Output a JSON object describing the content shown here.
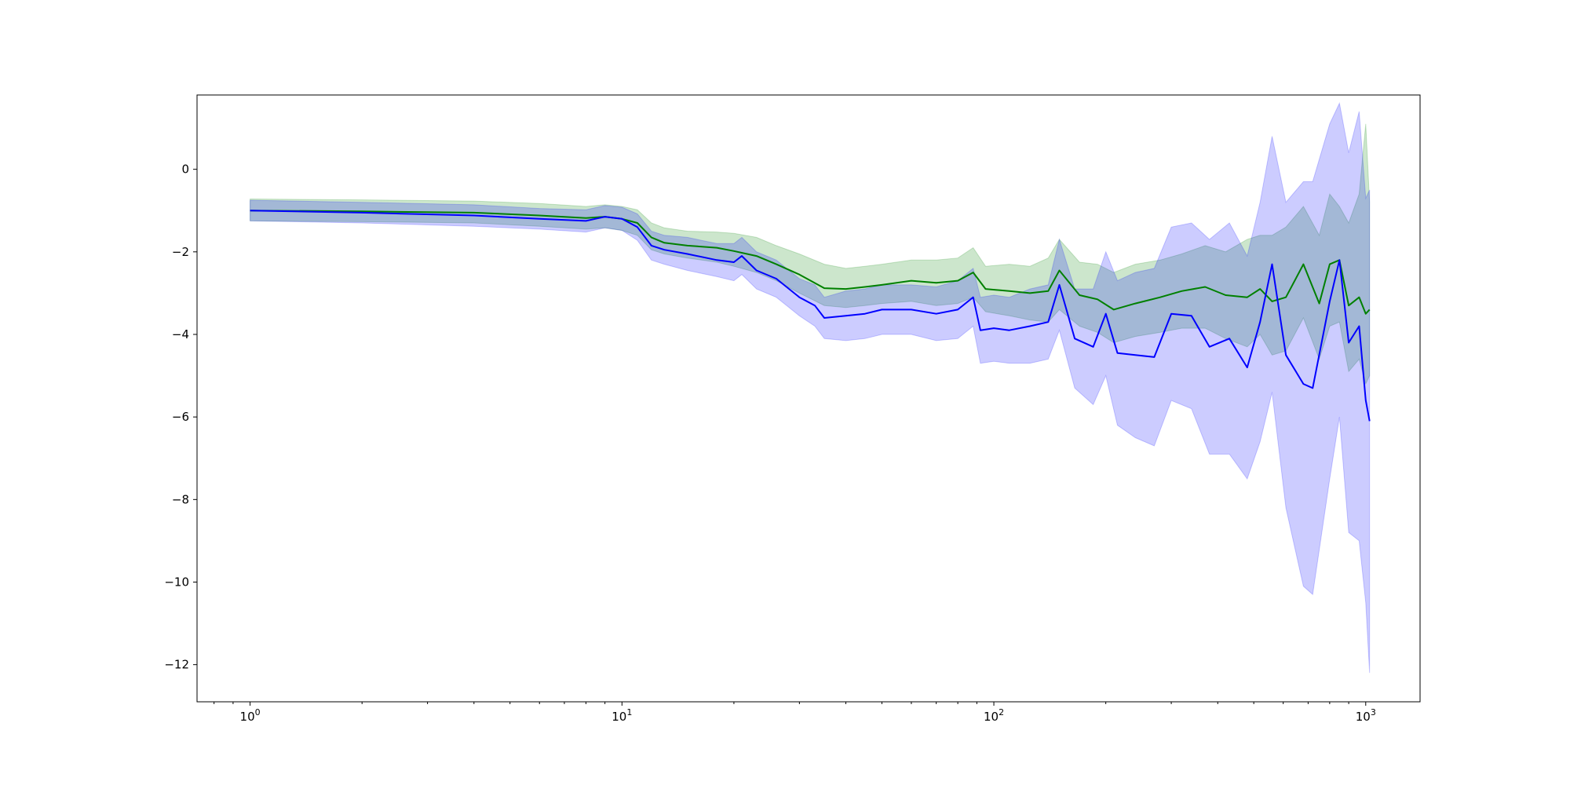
{
  "chart_data": {
    "type": "line",
    "title": "",
    "xlabel": "",
    "ylabel": "",
    "x_scale": "log",
    "xlim": [
      0.72,
      1400
    ],
    "ylim": [
      -12.9,
      1.8
    ],
    "grid": false,
    "legend": "none",
    "x_ticks": [
      {
        "value": 1,
        "base": "10",
        "exp": "0"
      },
      {
        "value": 10,
        "base": "10",
        "exp": "1"
      },
      {
        "value": 100,
        "base": "10",
        "exp": "2"
      },
      {
        "value": 1000,
        "base": "10",
        "exp": "3"
      }
    ],
    "y_ticks": [
      {
        "value": 0,
        "label": "0"
      },
      {
        "value": -2,
        "label": "−2"
      },
      {
        "value": -4,
        "label": "−4"
      },
      {
        "value": -6,
        "label": "−6"
      },
      {
        "value": -8,
        "label": "−8"
      },
      {
        "value": -10,
        "label": "−10"
      },
      {
        "value": -12,
        "label": "−12"
      }
    ],
    "series": [
      {
        "color": "#008000",
        "band_color": "#008000",
        "band_opacity": 0.2,
        "x": [
          1,
          2,
          4,
          6,
          8,
          9,
          10,
          11,
          12,
          13,
          15,
          18,
          20,
          23,
          26,
          30,
          35,
          40,
          45,
          50,
          60,
          70,
          80,
          88,
          95,
          110,
          125,
          140,
          150,
          170,
          190,
          210,
          240,
          280,
          320,
          370,
          420,
          480,
          520,
          560,
          610,
          680,
          750,
          800,
          850,
          900,
          960,
          1000,
          1024
        ],
        "y": [
          -1.0,
          -1.02,
          -1.05,
          -1.12,
          -1.18,
          -1.15,
          -1.2,
          -1.3,
          -1.65,
          -1.78,
          -1.85,
          -1.9,
          -1.98,
          -2.1,
          -2.3,
          -2.55,
          -2.88,
          -2.9,
          -2.85,
          -2.8,
          -2.7,
          -2.75,
          -2.7,
          -2.5,
          -2.9,
          -2.95,
          -3.0,
          -2.95,
          -2.45,
          -3.05,
          -3.15,
          -3.4,
          -3.25,
          -3.1,
          -2.95,
          -2.85,
          -3.05,
          -3.1,
          -2.9,
          -3.2,
          -3.1,
          -2.3,
          -3.25,
          -2.3,
          -2.2,
          -3.3,
          -3.1,
          -3.5,
          -3.4
        ],
        "lower": [
          -1.25,
          -1.27,
          -1.3,
          -1.38,
          -1.45,
          -1.42,
          -1.48,
          -1.6,
          -1.95,
          -2.05,
          -2.15,
          -2.25,
          -2.35,
          -2.5,
          -2.7,
          -3.0,
          -3.3,
          -3.35,
          -3.3,
          -3.25,
          -3.2,
          -3.3,
          -3.25,
          -3.1,
          -3.45,
          -3.55,
          -3.65,
          -3.7,
          -3.4,
          -3.8,
          -3.95,
          -4.2,
          -4.05,
          -3.95,
          -3.85,
          -3.85,
          -4.1,
          -4.3,
          -4.0,
          -4.5,
          -4.4,
          -3.6,
          -4.6,
          -3.8,
          -3.7,
          -4.9,
          -4.6,
          -5.2,
          -5.0
        ],
        "upper": [
          -0.72,
          -0.74,
          -0.77,
          -0.83,
          -0.9,
          -0.86,
          -0.9,
          -0.98,
          -1.3,
          -1.42,
          -1.5,
          -1.52,
          -1.55,
          -1.65,
          -1.85,
          -2.05,
          -2.3,
          -2.4,
          -2.35,
          -2.3,
          -2.2,
          -2.2,
          -2.15,
          -1.9,
          -2.35,
          -2.3,
          -2.35,
          -2.15,
          -1.7,
          -2.25,
          -2.3,
          -2.5,
          -2.3,
          -2.2,
          -2.05,
          -1.85,
          -2.0,
          -1.7,
          -1.6,
          -1.6,
          -1.4,
          -0.9,
          -1.6,
          -0.6,
          -0.9,
          -1.3,
          -0.6,
          1.1,
          -0.8
        ]
      },
      {
        "color": "#0000ff",
        "band_color": "#0000ff",
        "band_opacity": 0.2,
        "x": [
          1,
          2,
          4,
          6,
          8,
          9,
          10,
          11,
          12,
          13,
          15,
          18,
          20,
          21,
          23,
          26,
          30,
          33,
          35,
          40,
          45,
          50,
          60,
          70,
          80,
          88,
          92,
          100,
          110,
          125,
          140,
          150,
          165,
          185,
          200,
          215,
          240,
          270,
          300,
          340,
          380,
          430,
          480,
          520,
          560,
          610,
          680,
          720,
          800,
          850,
          900,
          960,
          1000,
          1024
        ],
        "y": [
          -1.0,
          -1.05,
          -1.12,
          -1.2,
          -1.25,
          -1.15,
          -1.2,
          -1.4,
          -1.85,
          -1.95,
          -2.05,
          -2.2,
          -2.25,
          -2.1,
          -2.45,
          -2.65,
          -3.1,
          -3.3,
          -3.6,
          -3.55,
          -3.5,
          -3.4,
          -3.4,
          -3.5,
          -3.4,
          -3.1,
          -3.9,
          -3.85,
          -3.9,
          -3.8,
          -3.7,
          -2.8,
          -4.1,
          -4.3,
          -3.5,
          -4.45,
          -4.5,
          -4.55,
          -3.5,
          -3.55,
          -4.3,
          -4.1,
          -4.8,
          -3.7,
          -2.3,
          -4.5,
          -5.2,
          -5.3,
          -3.2,
          -2.2,
          -4.2,
          -3.8,
          -5.6,
          -6.1
        ],
        "lower": [
          -1.25,
          -1.3,
          -1.38,
          -1.45,
          -1.52,
          -1.42,
          -1.48,
          -1.72,
          -2.2,
          -2.3,
          -2.45,
          -2.6,
          -2.7,
          -2.55,
          -2.9,
          -3.1,
          -3.55,
          -3.8,
          -4.1,
          -4.15,
          -4.1,
          -4.0,
          -4.0,
          -4.15,
          -4.1,
          -3.8,
          -4.7,
          -4.65,
          -4.7,
          -4.7,
          -4.6,
          -3.9,
          -5.3,
          -5.7,
          -5.0,
          -6.2,
          -6.5,
          -6.7,
          -5.6,
          -5.8,
          -6.9,
          -6.9,
          -7.5,
          -6.6,
          -5.4,
          -8.2,
          -10.1,
          -10.3,
          -7.5,
          -6.0,
          -8.8,
          -9.0,
          -10.5,
          -12.2
        ],
        "upper": [
          -0.75,
          -0.8,
          -0.86,
          -0.95,
          -0.98,
          -0.88,
          -0.92,
          -1.08,
          -1.5,
          -1.6,
          -1.65,
          -1.8,
          -1.8,
          -1.65,
          -2.0,
          -2.2,
          -2.65,
          -2.8,
          -3.1,
          -2.95,
          -2.9,
          -2.8,
          -2.8,
          -2.85,
          -2.7,
          -2.4,
          -3.1,
          -3.05,
          -3.1,
          -2.9,
          -2.8,
          -1.7,
          -2.9,
          -2.9,
          -2.0,
          -2.7,
          -2.5,
          -2.4,
          -1.4,
          -1.3,
          -1.7,
          -1.3,
          -2.1,
          -0.8,
          0.8,
          -0.8,
          -0.3,
          -0.3,
          1.1,
          1.6,
          0.4,
          1.4,
          -0.7,
          -0.5
        ]
      }
    ]
  }
}
